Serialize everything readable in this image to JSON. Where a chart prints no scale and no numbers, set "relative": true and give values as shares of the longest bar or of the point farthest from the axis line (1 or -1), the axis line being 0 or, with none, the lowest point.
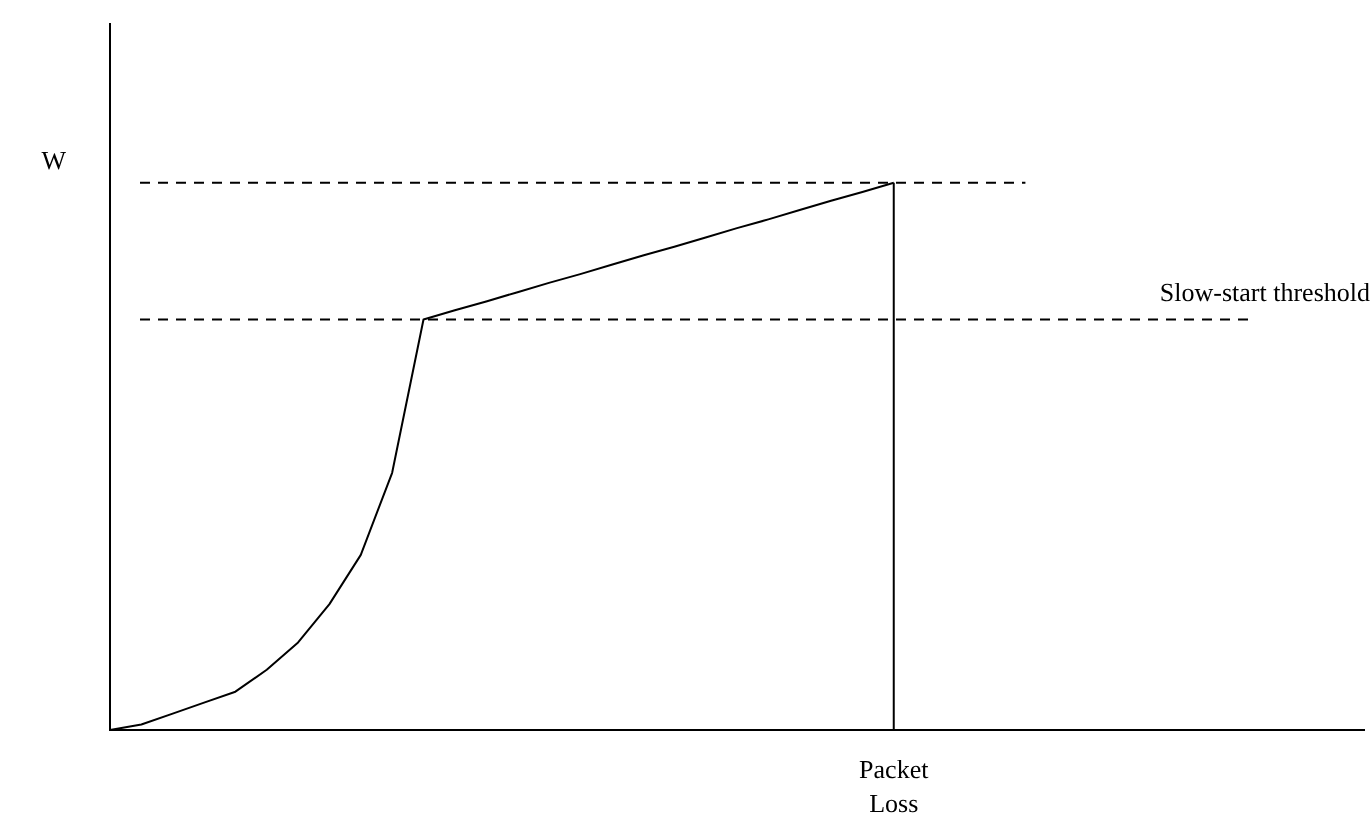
{
  "chart_data": {
    "type": "line",
    "relative": true,
    "color": "#000000",
    "categories": [
      null,
      null,
      null,
      null,
      null,
      null,
      null,
      null,
      null,
      null,
      null,
      null,
      null,
      null,
      null,
      null,
      null,
      null,
      null,
      null,
      null,
      null,
      null,
      null,
      null,
      null,
      null,
      null,
      null,
      null,
      null,
      null,
      null,
      null,
      null,
      null,
      null,
      null,
      null,
      null,
      null
    ],
    "values": [
      0,
      0.01,
      0.03,
      0.05,
      0.07,
      0.11,
      0.16,
      0.23,
      0.32,
      0.47,
      0.75,
      0.767,
      0.783,
      0.8,
      0.817,
      0.833,
      0.85,
      0.867,
      0.883,
      0.9,
      0.917,
      0.933,
      0.95,
      0.967,
      0.983,
      1,
      null,
      null,
      null,
      null,
      null,
      null,
      null,
      null,
      null,
      null,
      null,
      null,
      null,
      null,
      null
    ],
    "annotations": [
      "Packet Loss"
    ],
    "ref_lines": [
      {
        "axis": "y",
        "value": 1,
        "label": "W",
        "line_style": "dashed"
      },
      {
        "axis": "y",
        "value": 0.75,
        "label": "Slow-start threshold",
        "line_style": "dashed"
      }
    ],
    "grid": false,
    "legend": false,
    "marker": "none",
    "line_style": "solid"
  }
}
